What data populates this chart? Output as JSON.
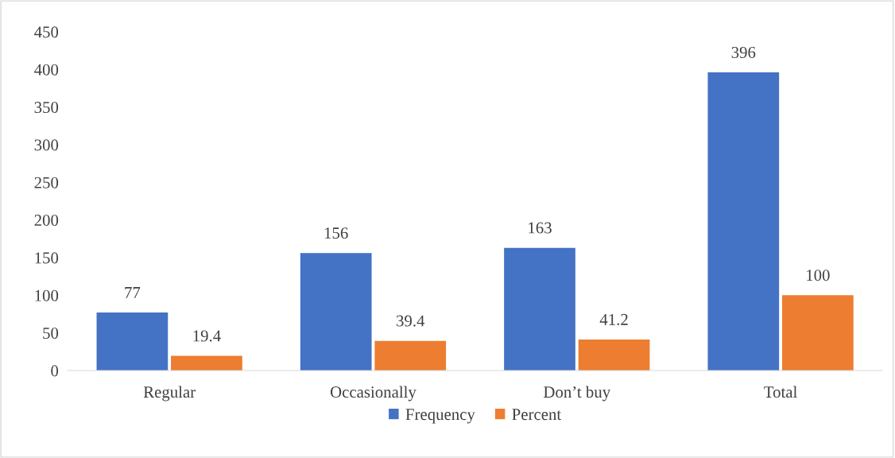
{
  "chart_data": {
    "type": "bar",
    "categories": [
      "Regular",
      "Occasionally",
      "Don’t buy",
      "Total"
    ],
    "series": [
      {
        "name": "Frequency",
        "color": "#4472c4",
        "values": [
          77,
          156,
          163,
          396
        ]
      },
      {
        "name": "Percent",
        "color": "#ed7d31",
        "values": [
          19.4,
          39.4,
          41.2,
          100
        ]
      }
    ],
    "ylim": [
      0,
      450
    ],
    "yticks": [
      0,
      50,
      100,
      150,
      200,
      250,
      300,
      350,
      400,
      450
    ],
    "data_labels": true,
    "grid": false,
    "legend": "bottom"
  }
}
